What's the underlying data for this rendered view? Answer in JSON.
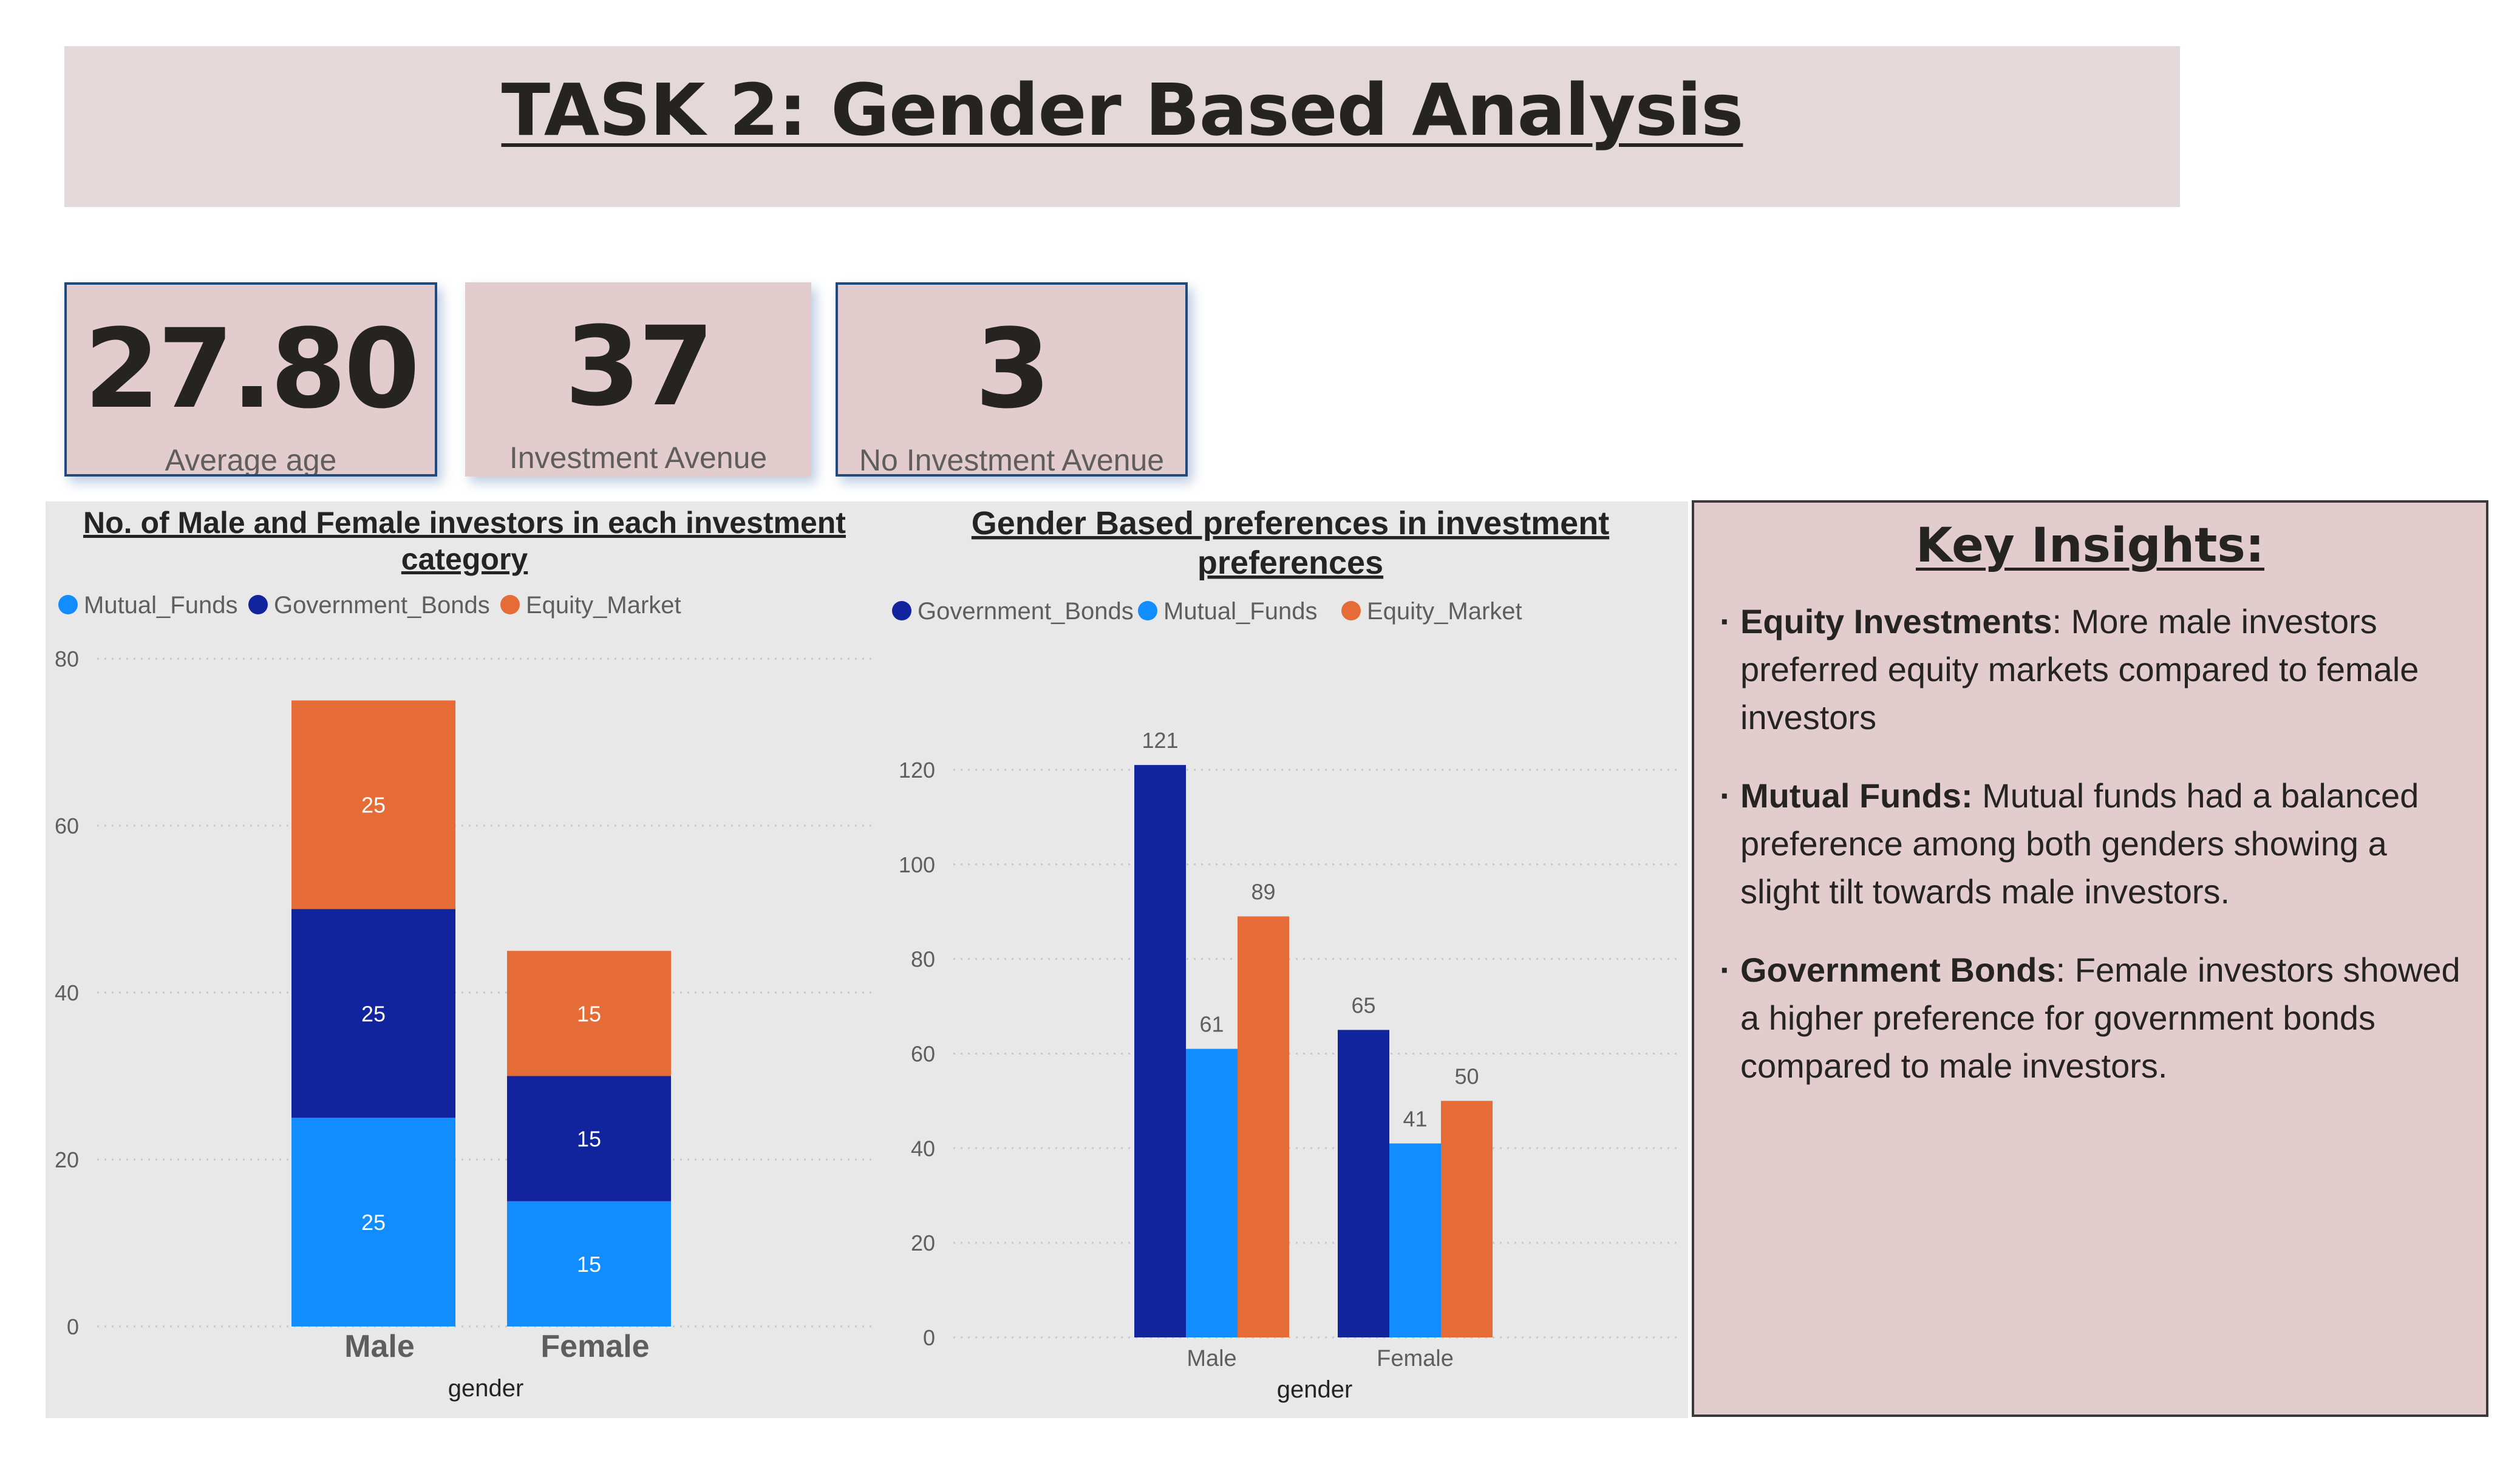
{
  "page": {
    "title": "TASK 2: Gender Based Analysis"
  },
  "cards": [
    {
      "value": "27.80",
      "label": "Average age"
    },
    {
      "value": "37",
      "label": "Investment Avenue"
    },
    {
      "value": "3",
      "label": "No Investment Avenue"
    }
  ],
  "insights": {
    "title": "Key Insights:",
    "items": [
      {
        "bold": "Equity Investments",
        "text": ": More male investors preferred equity markets compared to female investors"
      },
      {
        "bold": "Mutual Funds:",
        "text": " Mutual funds had a balanced preference among both genders showing a slight tilt towards male investors."
      },
      {
        "bold": "Government Bonds",
        "text": ": Female investors showed a higher preference for government bonds compared to male investors."
      }
    ]
  },
  "colors": {
    "Mutual_Funds": "#118dff",
    "Government_Bonds": "#12239e",
    "Equity_Market": "#e66c37"
  },
  "chart_data": [
    {
      "type": "bar",
      "stacked": true,
      "title": "No. of Male and Female investors in each investment category",
      "xlabel": "gender",
      "ylabel": "",
      "categories": [
        "Male",
        "Female"
      ],
      "series": [
        {
          "name": "Mutual_Funds",
          "values": [
            25,
            15
          ]
        },
        {
          "name": "Government_Bonds",
          "values": [
            25,
            15
          ]
        },
        {
          "name": "Equity_Market",
          "values": [
            25,
            15
          ]
        }
      ],
      "ylim": [
        0,
        80
      ],
      "yticks": [
        0,
        20,
        40,
        60,
        80
      ],
      "legend": "top-left",
      "grid": true
    },
    {
      "type": "bar",
      "stacked": false,
      "title": "Gender Based preferences in investment preferences",
      "xlabel": "gender",
      "ylabel": "",
      "categories": [
        "Male",
        "Female"
      ],
      "series": [
        {
          "name": "Government_Bonds",
          "values": [
            121,
            65
          ]
        },
        {
          "name": "Mutual_Funds",
          "values": [
            61,
            41
          ]
        },
        {
          "name": "Equity_Market",
          "values": [
            89,
            50
          ]
        }
      ],
      "ylim": [
        0,
        130
      ],
      "yticks": [
        0,
        20,
        40,
        60,
        80,
        100,
        120
      ],
      "legend": "top-left",
      "grid": true
    }
  ]
}
